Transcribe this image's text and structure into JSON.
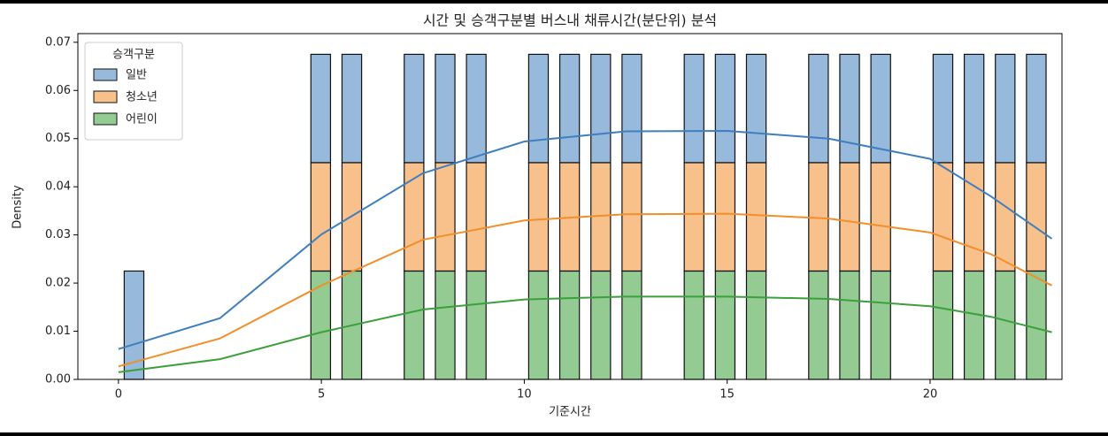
{
  "chart_data": {
    "type": "stacked_histogram_kde",
    "title": "시간 및 승객구분별 버스내 채류시간(분단위) 분석",
    "x_label": "기준시간",
    "y_label": "Density",
    "legend_title": "승객구분",
    "legend": "upper left",
    "bins": [
      0,
      0.767,
      1.533,
      2.3,
      3.067,
      3.833,
      4.6,
      5.367,
      6.133,
      6.9,
      7.667,
      8.433,
      9.2,
      9.967,
      10.733,
      11.5,
      12.267,
      13.033,
      13.8,
      14.567,
      15.333,
      16.1,
      16.867,
      17.633,
      18.4,
      19.167,
      19.933,
      20.7,
      21.467,
      22.233,
      23
    ],
    "series": [
      {
        "name": "일반",
        "color": "#3f7fbf",
        "values": [
          0.0225,
          0,
          0,
          0,
          0,
          0,
          0.0225,
          0.0225,
          0,
          0.0225,
          0.0225,
          0.0225,
          0,
          0.0225,
          0.0225,
          0.0225,
          0.0225,
          0,
          0.0225,
          0.0225,
          0.0225,
          0,
          0.0225,
          0.0225,
          0.0225,
          0,
          0.0225,
          0.0225,
          0.0225,
          0.0225
        ]
      },
      {
        "name": "청소년",
        "color": "#f28e2b",
        "values": [
          0,
          0,
          0,
          0,
          0,
          0,
          0.0225,
          0.0225,
          0,
          0.0225,
          0.0225,
          0.0225,
          0,
          0.0225,
          0.0225,
          0.0225,
          0.0225,
          0,
          0.0225,
          0.0225,
          0.0225,
          0,
          0.0225,
          0.0225,
          0.0225,
          0,
          0.0225,
          0.0225,
          0.0225,
          0.0225
        ]
      },
      {
        "name": "어린이",
        "color": "#3ba03b",
        "values": [
          0,
          0,
          0,
          0,
          0,
          0,
          0.0225,
          0.0225,
          0,
          0.0225,
          0.0225,
          0.0225,
          0,
          0.0225,
          0.0225,
          0.0225,
          0.0225,
          0,
          0.0225,
          0.0225,
          0.0225,
          0,
          0.0225,
          0.0225,
          0.0225,
          0,
          0.0225,
          0.0225,
          0.0225,
          0.0225
        ]
      }
    ],
    "kde_x": [
      0,
      2.5,
      5,
      7.5,
      10,
      12.5,
      15,
      17.5,
      20,
      21.5,
      23
    ],
    "kde": [
      [
        0.0063,
        0.0127,
        0.0301,
        0.0428,
        0.0494,
        0.0515,
        0.0516,
        0.05,
        0.0458,
        0.038,
        0.0292
      ],
      [
        0.0027,
        0.0085,
        0.0195,
        0.029,
        0.033,
        0.0343,
        0.0344,
        0.0334,
        0.0305,
        0.026,
        0.0195
      ],
      [
        0.0015,
        0.0042,
        0.0098,
        0.0145,
        0.0166,
        0.0172,
        0.0172,
        0.0167,
        0.0152,
        0.013,
        0.0098
      ]
    ],
    "xlim": [
      -1,
      23.25
    ],
    "ylim": [
      0,
      0.0718
    ],
    "xticks": [
      0,
      5,
      10,
      15,
      20
    ],
    "yticks": [
      {
        "value": 0,
        "label": "0.00"
      },
      {
        "value": 0.01,
        "label": "0.01"
      },
      {
        "value": 0.02,
        "label": "0.02"
      },
      {
        "value": 0.03,
        "label": "0.03"
      },
      {
        "value": 0.04,
        "label": "0.04"
      },
      {
        "value": 0.05,
        "label": "0.05"
      },
      {
        "value": 0.06,
        "label": "0.06"
      },
      {
        "value": 0.07,
        "label": "0.07"
      }
    ]
  }
}
